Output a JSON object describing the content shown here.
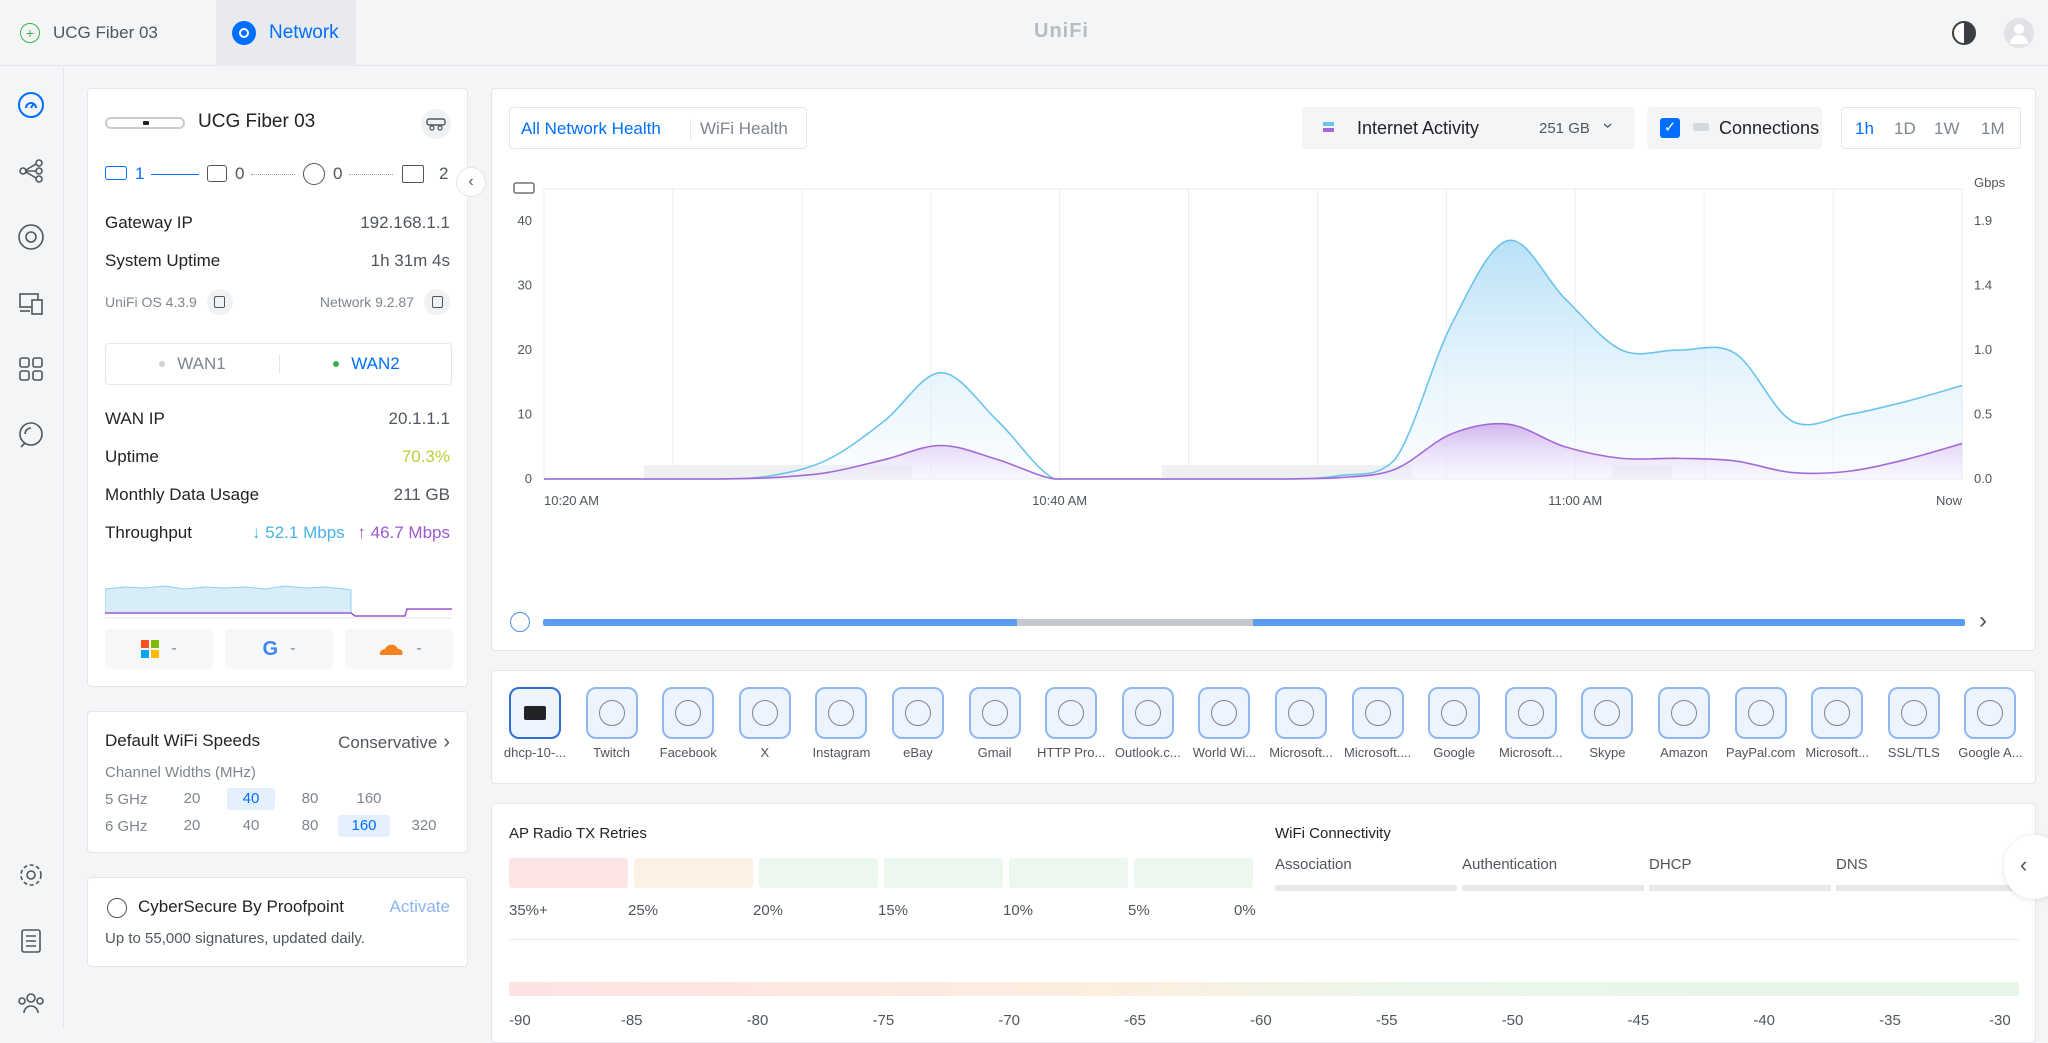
{
  "top": {
    "tab_device": "UCG Fiber 03",
    "tab_network": "Network",
    "brand": "UniFi"
  },
  "sidebar": [
    "dashboard-icon",
    "topology-icon",
    "devices-icon",
    "clients-icon",
    "apps-icon",
    "insights-icon",
    "settings-icon",
    "logs-icon",
    "admins-icon"
  ],
  "device": {
    "name": "UCG Fiber 03",
    "ports": [
      "1",
      "0",
      "0",
      "2"
    ],
    "gateway_ip_label": "Gateway IP",
    "gateway_ip": "192.168.1.1",
    "uptime_label": "System Uptime",
    "uptime": "1h 31m 4s",
    "os": "UniFi OS 4.3.9",
    "network": "Network 9.2.87",
    "wan1": "WAN1",
    "wan2": "WAN2",
    "wan_ip_label": "WAN IP",
    "wan_ip": "20.1.1.1",
    "wan_uptime_label": "Uptime",
    "wan_uptime": "70.3%",
    "monthly_label": "Monthly Data Usage",
    "monthly": "211 GB",
    "throughput_label": "Throughput",
    "down": "↓ 52.1 Mbps",
    "up": "↑ 46.7 Mbps",
    "isp": [
      "-",
      "-",
      "-"
    ]
  },
  "wifi": {
    "title": "Default WiFi Speeds",
    "mode": "Conservative",
    "widths_label": "Channel Widths (MHz)",
    "band5": "5 GHz",
    "band6": "6 GHz",
    "w5": [
      "20",
      "40",
      "80",
      "160"
    ],
    "w6": [
      "20",
      "40",
      "80",
      "160",
      "320"
    ]
  },
  "cyber": {
    "title": "CyberSecure By Proofpoint",
    "action": "Activate",
    "desc": "Up to 55,000 signatures, updated daily."
  },
  "main": {
    "tab_all": "All Network Health",
    "tab_wifi": "WiFi Health",
    "activity": "Internet Activity",
    "activity_value": "251 GB",
    "connections": "Connections",
    "ranges": [
      "1h",
      "1D",
      "1W",
      "1M"
    ]
  },
  "chart_data": {
    "type": "area",
    "x_ticks": [
      "10:20 AM",
      "10:40 AM",
      "11:00 AM",
      "Now"
    ],
    "y_left_ticks": [
      "0",
      "10",
      "20",
      "30",
      "40"
    ],
    "y_right_ticks": [
      "0.0",
      "0.5",
      "1.0",
      "1.4",
      "1.9"
    ],
    "y_right_unit": "Gbps",
    "ylim_left": [
      0,
      45
    ],
    "series": [
      {
        "color": "#6cc4ec",
        "values": [
          0,
          0,
          0,
          0,
          0.5,
          3,
          9,
          16.5,
          9,
          0,
          0,
          0,
          0,
          0,
          0.5,
          3,
          24,
          37,
          28,
          20,
          20,
          19.5,
          9,
          10,
          12,
          14.5
        ]
      },
      {
        "color": "#a46bd6",
        "values": [
          0,
          0,
          0,
          0,
          0.2,
          1,
          3,
          5.2,
          3,
          0,
          0,
          0,
          0,
          0,
          0.2,
          1.5,
          7,
          8.5,
          5,
          3.2,
          3.2,
          2.8,
          1,
          1.2,
          3,
          5.5
        ]
      }
    ]
  },
  "apps": [
    "dhcp-10-...",
    "Twitch",
    "Facebook",
    "X",
    "Instagram",
    "eBay",
    "Gmail",
    "HTTP Pro...",
    "Outlook.c...",
    "World Wi...",
    "Microsoft...",
    "Microsoft....",
    "Google",
    "Microsoft...",
    "Skype",
    "Amazon",
    "PayPal.com",
    "Microsoft...",
    "SSL/TLS",
    "Google A..."
  ],
  "radio": {
    "title": "AP Radio TX Retries",
    "labels": [
      "35%+",
      "25%",
      "20%",
      "15%",
      "10%",
      "5%",
      "0%"
    ],
    "colors": [
      "#fde5e5",
      "#fdf1e4",
      "#ecf8ee",
      "#ecf8ee",
      "#ecf8ee",
      "#ecf8ee"
    ]
  },
  "connectivity": {
    "title": "WiFi Connectivity",
    "items": [
      "Association",
      "Authentication",
      "DHCP",
      "DNS"
    ]
  },
  "signal": {
    "labels": [
      "-90",
      "-85",
      "-80",
      "-75",
      "-70",
      "-65",
      "-60",
      "-55",
      "-50",
      "-45",
      "-40",
      "-35",
      "-30"
    ]
  }
}
